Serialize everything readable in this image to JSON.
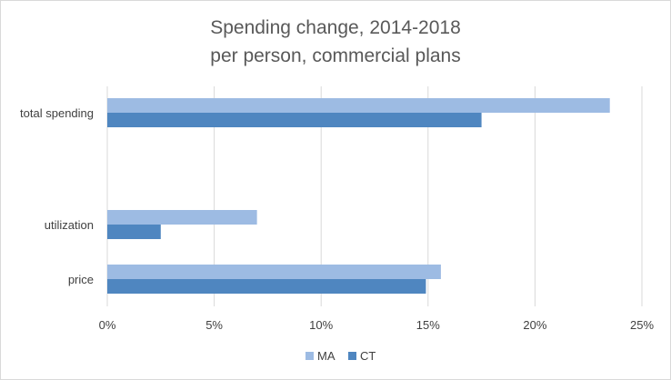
{
  "chart_data": {
    "type": "bar",
    "orientation": "horizontal",
    "title": "Spending change, 2014-2018",
    "subtitle": "per person, commercial plans",
    "categories": [
      "total spending",
      "utilization",
      "price"
    ],
    "series": [
      {
        "name": "MA",
        "color": "#9dbbe3",
        "values": [
          23.5,
          7.0,
          15.6
        ]
      },
      {
        "name": "CT",
        "color": "#4f86c0",
        "values": [
          17.5,
          2.5,
          14.9
        ]
      }
    ],
    "x_ticks": [
      0,
      5,
      10,
      15,
      20,
      25
    ],
    "x_tick_labels": [
      "0%",
      "5%",
      "10%",
      "15%",
      "20%",
      "25%"
    ],
    "xlim": [
      0,
      25
    ],
    "grid": true,
    "legend_position": "bottom",
    "legend": [
      "MA",
      "CT"
    ]
  }
}
